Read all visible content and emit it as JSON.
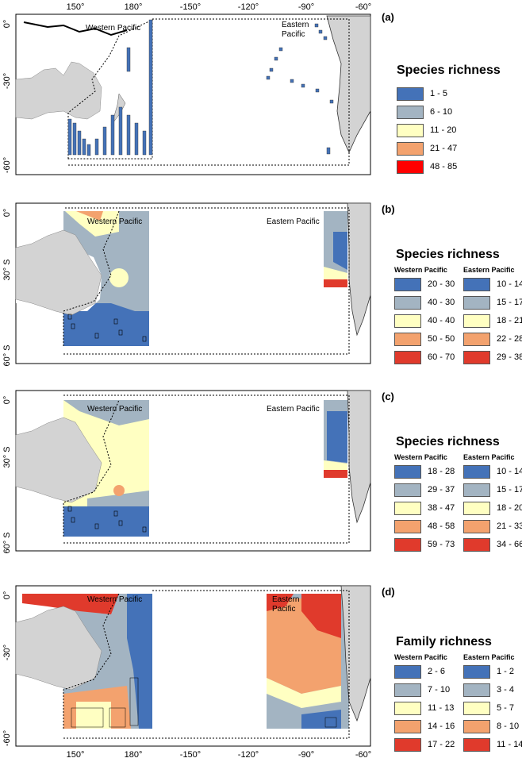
{
  "axes": {
    "top_ticks": [
      "150°",
      "180°",
      "-150°",
      "-120°",
      "-90°",
      "-60°"
    ],
    "bottom_ticks": [
      "150°",
      "180°",
      "-150°",
      "-120°",
      "-90°",
      "-60°"
    ],
    "lat_ticks_a": [
      "0°",
      "-30°",
      "-60°"
    ],
    "lat_ticks_bc": [
      "0°",
      "30° S",
      "60° S"
    ],
    "lat_ticks_d": [
      "0°",
      "-30°",
      "-60°"
    ]
  },
  "colors": {
    "c1": "#4472b8",
    "c2": "#a3b4c2",
    "c3": "#ffffc2",
    "c4": "#f3a26e",
    "c5a": "#ff0000",
    "c5": "#e03a2c",
    "land": "#d3d3d3"
  },
  "panels": [
    {
      "label": "(a)",
      "region_west": "Western Pacific",
      "region_east_1": "Eastern",
      "region_east_2": "Pacific",
      "legend_title": "Species richness",
      "items": [
        "1 - 5",
        "6 - 10",
        "11 - 20",
        "21 - 47",
        "48 - 85"
      ]
    },
    {
      "label": "(b)",
      "region_west": "Western Pacific",
      "region_east": "Eastern Pacific",
      "legend_title": "Species richness",
      "col_west": "Western Pacific",
      "col_east": "Eastern Pacific",
      "west_items": [
        "20 - 30",
        "40 - 30",
        "40 - 40",
        "50 - 50",
        "60 - 70"
      ],
      "east_items": [
        "10 - 14",
        "15 - 17",
        "18 - 21",
        "22 - 28",
        "29 - 38"
      ]
    },
    {
      "label": "(c)",
      "region_west": "Western Pacific",
      "region_east": "Eastern Pacific",
      "legend_title": "Species richness",
      "col_west": "Western Pacific",
      "col_east": "Eastern Pacific",
      "west_items": [
        "18 - 28",
        "29 - 37",
        "38 - 47",
        "48 - 58",
        "59 - 73"
      ],
      "east_items": [
        "10 - 14",
        "15 - 17",
        "18 - 20",
        "21 - 33",
        "34 - 66"
      ]
    },
    {
      "label": "(d)",
      "region_west": "Western Pacific",
      "region_east_1": "Eastern",
      "region_east_2": "Pacific",
      "legend_title": "Family richness",
      "col_west": "Western Pacific",
      "col_east": "Eastern Pacific",
      "west_items": [
        "2 - 6",
        "7 - 10",
        "11 - 13",
        "14 - 16",
        "17 - 22"
      ],
      "east_items": [
        "1 - 2",
        "3 - 4",
        "5 - 7",
        "8 - 10",
        "11 - 14"
      ]
    }
  ]
}
